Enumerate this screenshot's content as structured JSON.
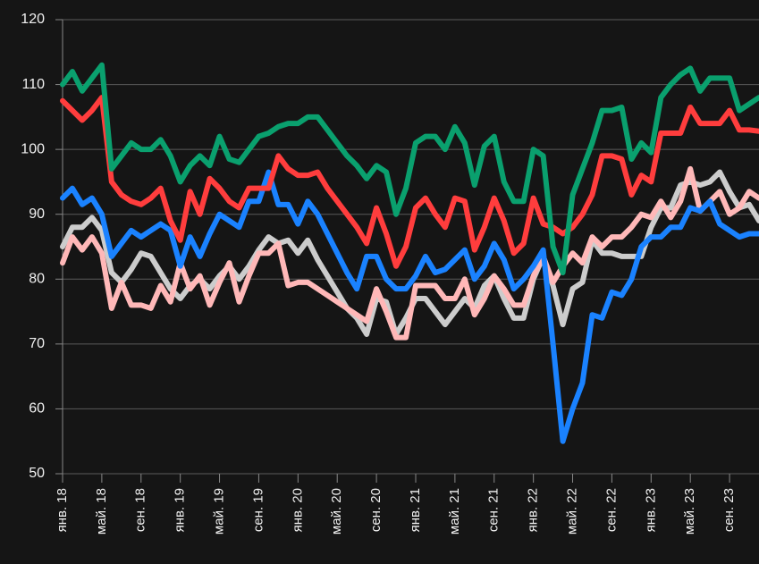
{
  "chart_data": {
    "type": "line",
    "categories": [
      "янв. 18",
      null,
      null,
      null,
      "май. 18",
      null,
      null,
      null,
      "сен. 18",
      null,
      null,
      null,
      "янв. 19",
      null,
      null,
      null,
      "май. 19",
      null,
      null,
      null,
      "сен. 19",
      null,
      null,
      null,
      "янв. 20",
      null,
      null,
      null,
      "май. 20",
      null,
      null,
      null,
      "сен. 20",
      null,
      null,
      null,
      "янв. 21",
      null,
      null,
      null,
      "май. 21",
      null,
      null,
      null,
      "сен. 21",
      null,
      null,
      null,
      "янв. 22",
      null,
      null,
      null,
      "май. 22",
      null,
      null,
      null,
      "сен. 22",
      null,
      null,
      null,
      "янв. 23",
      null,
      null,
      null,
      "май. 23",
      null,
      null,
      null,
      "сен. 23",
      null,
      null,
      null
    ],
    "series": [
      {
        "color": "#cccccc",
        "values": [
          85,
          88,
          88,
          89.5,
          87.5,
          81,
          79.5,
          81.5,
          84,
          83.5,
          81,
          78.5,
          77,
          79,
          80,
          78.5,
          80.5,
          82,
          80,
          82,
          84.5,
          86.5,
          85.5,
          86,
          84,
          86,
          83,
          80.5,
          78,
          75.5,
          74,
          71.5,
          77,
          76.5,
          71.5,
          74,
          77,
          77,
          75,
          73,
          75,
          77,
          75.5,
          79,
          80.5,
          77,
          74,
          74,
          80,
          83.5,
          79,
          73,
          78.5,
          79.5,
          86,
          84,
          84,
          83.5,
          83.5,
          83.5,
          88,
          91,
          91,
          94.5,
          95,
          94.5,
          95,
          96.5,
          93.5,
          91,
          91.5,
          89
        ]
      },
      {
        "color": "#ffb8b8",
        "values": [
          82.5,
          86.5,
          84.5,
          86.5,
          84,
          75.5,
          79.5,
          76,
          76,
          75.5,
          79,
          76.5,
          82.5,
          78.5,
          80.5,
          76,
          79.5,
          82.5,
          76.5,
          80.5,
          84,
          84,
          85.5,
          79,
          79.5,
          79.5,
          78.5,
          77.5,
          76.5,
          75.5,
          74.5,
          73.5,
          78.5,
          75,
          71,
          71,
          79,
          79,
          79,
          77,
          77,
          80,
          74.5,
          77,
          80.5,
          78.5,
          76,
          76,
          80.5,
          83.5,
          79.5,
          82,
          84,
          82.5,
          86.5,
          85,
          86.5,
          86.5,
          88,
          90,
          89.5,
          92,
          89.5,
          92,
          97,
          90.5,
          92,
          93.5,
          90,
          91,
          93.5,
          92.5
        ]
      },
      {
        "color": "#1a82ff",
        "values": [
          92.5,
          94,
          91.5,
          92.5,
          90,
          83.5,
          85.5,
          87.5,
          86.5,
          87.5,
          88.5,
          87.5,
          82,
          86.5,
          83.5,
          87,
          90,
          89,
          88,
          92,
          92,
          96.5,
          91.5,
          91.5,
          88.5,
          92,
          90,
          87,
          84,
          81,
          78.5,
          83.5,
          83.5,
          80,
          78.5,
          78.5,
          80.5,
          83.5,
          81,
          81.5,
          83,
          84.5,
          80,
          82,
          85.5,
          83,
          78.5,
          80,
          82,
          84.5,
          70,
          55,
          60,
          64,
          74.5,
          74,
          78,
          77.5,
          80,
          85,
          86.5,
          86.5,
          88,
          88,
          91,
          90.5,
          92,
          88.5,
          87.5,
          86.5,
          87,
          87
        ]
      },
      {
        "color": "#ff3d3d",
        "values": [
          107.5,
          106,
          104.5,
          106,
          108,
          95,
          93,
          92,
          91.5,
          92.5,
          94,
          89,
          86,
          93.5,
          90,
          95.5,
          94,
          92,
          91,
          94,
          94,
          94,
          99,
          97,
          96,
          96,
          96.5,
          94,
          92,
          90,
          88,
          85.5,
          91,
          87,
          82,
          85,
          91,
          92.5,
          90,
          88,
          92.5,
          92,
          84.5,
          88,
          92.5,
          89,
          84,
          85.5,
          92.5,
          88.5,
          88,
          87,
          88,
          90,
          93,
          99,
          99,
          98.5,
          93,
          96,
          95,
          102.5,
          102.5,
          102.5,
          106.5,
          104,
          104,
          104,
          106,
          103,
          103,
          102.8
        ]
      },
      {
        "color": "#0aa06e",
        "values": [
          110,
          112,
          109,
          111,
          113,
          97,
          99,
          101,
          100,
          100,
          101.5,
          99,
          95,
          97.5,
          99,
          97.5,
          102,
          98.5,
          98,
          100,
          102,
          102.5,
          103.5,
          104,
          104,
          105,
          105,
          103,
          101,
          99,
          97.5,
          95.5,
          97.5,
          96.5,
          90,
          94,
          101,
          102,
          102,
          100,
          103.5,
          101,
          94.5,
          100.5,
          102,
          95,
          92,
          92,
          100,
          99,
          85,
          81,
          93,
          97,
          101,
          106,
          106,
          106.5,
          98.5,
          101,
          99.5,
          108,
          110,
          111.5,
          112.5,
          109,
          111,
          111,
          111,
          106,
          107,
          108
        ]
      }
    ],
    "ylim": [
      50,
      120
    ],
    "yticks": [
      50,
      60,
      70,
      80,
      90,
      100,
      110,
      120
    ],
    "grid": true
  }
}
